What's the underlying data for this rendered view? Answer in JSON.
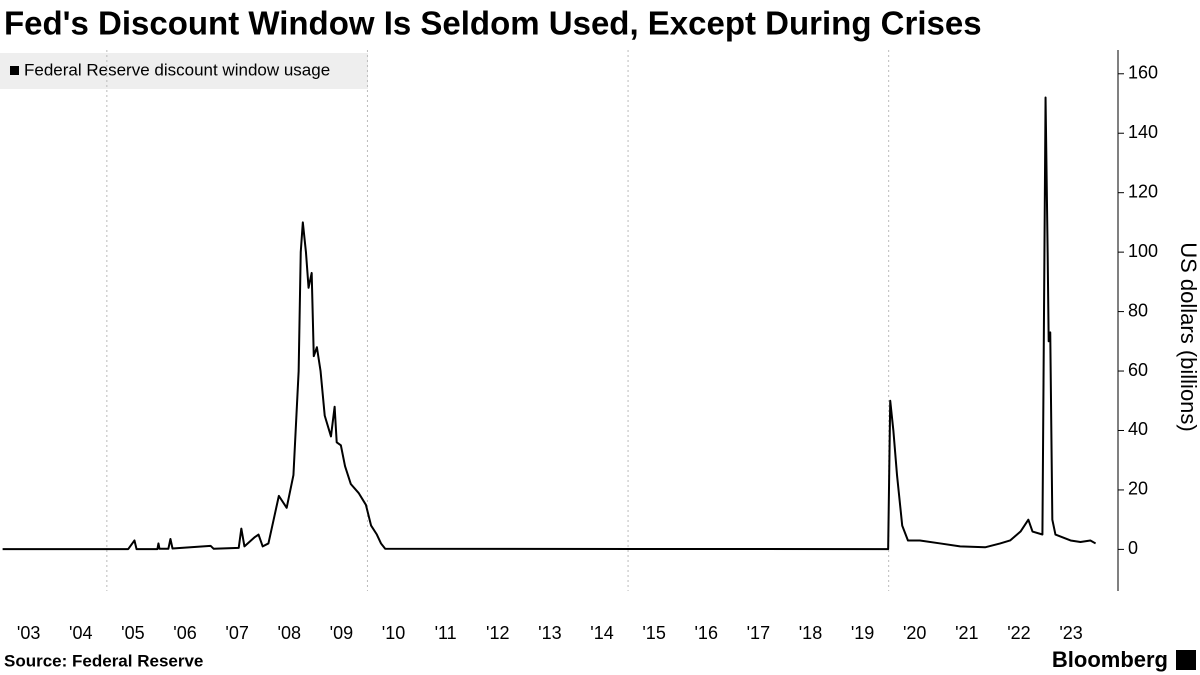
{
  "chart_data": {
    "type": "line",
    "title": "Fed's Discount Window Is Seldom Used, Except During Crises",
    "source": "Source: Federal Reserve",
    "brand": "Bloomberg",
    "y_label": "US dollars (billions)",
    "xlim": [
      2002.95,
      2024.4
    ],
    "ylim": [
      -14,
      168
    ],
    "yticks": [
      0,
      20,
      40,
      60,
      80,
      100,
      120,
      140,
      160
    ],
    "xticks": [
      {
        "value": 2003.5,
        "label": "'03"
      },
      {
        "value": 2004.5,
        "label": "'04"
      },
      {
        "value": 2005.5,
        "label": "'05"
      },
      {
        "value": 2006.5,
        "label": "'06"
      },
      {
        "value": 2007.5,
        "label": "'07"
      },
      {
        "value": 2008.5,
        "label": "'08"
      },
      {
        "value": 2009.5,
        "label": "'09"
      },
      {
        "value": 2010.5,
        "label": "'10"
      },
      {
        "value": 2011.5,
        "label": "'11"
      },
      {
        "value": 2012.5,
        "label": "'12"
      },
      {
        "value": 2013.5,
        "label": "'13"
      },
      {
        "value": 2014.5,
        "label": "'14"
      },
      {
        "value": 2015.5,
        "label": "'15"
      },
      {
        "value": 2016.5,
        "label": "'16"
      },
      {
        "value": 2017.5,
        "label": "'17"
      },
      {
        "value": 2018.5,
        "label": "'18"
      },
      {
        "value": 2019.5,
        "label": "'19"
      },
      {
        "value": 2020.5,
        "label": "'20"
      },
      {
        "value": 2021.5,
        "label": "'21"
      },
      {
        "value": 2022.5,
        "label": "'22"
      },
      {
        "value": 2023.5,
        "label": "'23"
      }
    ],
    "xgrid": [
      2005,
      2010,
      2015,
      2020
    ],
    "legend": "top-left",
    "series": [
      {
        "name": "Federal Reserve discount window usage",
        "color": "#000000",
        "x": [
          2003.0,
          2005.41,
          2005.53,
          2005.57,
          2005.97,
          2005.99,
          2006.01,
          2006.18,
          2006.22,
          2006.26,
          2006.85,
          2006.99,
          2007.05,
          2007.53,
          2007.58,
          2007.64,
          2007.83,
          2007.91,
          2007.99,
          2008.1,
          2008.2,
          2008.3,
          2008.45,
          2008.58,
          2008.68,
          2008.72,
          2008.76,
          2008.82,
          2008.87,
          2008.93,
          2008.97,
          2009.03,
          2009.1,
          2009.18,
          2009.3,
          2009.37,
          2009.41,
          2009.49,
          2009.57,
          2009.68,
          2009.83,
          2009.97,
          2010.07,
          2010.18,
          2010.26,
          2010.34,
          2019.99,
          2020.03,
          2020.09,
          2020.16,
          2020.26,
          2020.37,
          2020.6,
          2020.99,
          2021.37,
          2021.85,
          2022.14,
          2022.33,
          2022.53,
          2022.68,
          2022.76,
          2022.95,
          2023.01,
          2023.05,
          2023.07,
          2023.1,
          2023.14,
          2023.2,
          2023.49,
          2023.68,
          2023.87,
          2023.97
        ],
        "values": [
          0.1,
          0.1,
          3,
          0.1,
          0.1,
          2,
          0.2,
          0.2,
          3.5,
          0.3,
          1,
          1.2,
          0.2,
          0.5,
          7,
          1,
          4,
          5,
          1,
          2,
          10,
          18,
          14,
          25,
          60,
          100,
          110,
          100,
          88,
          93,
          65,
          68,
          60,
          45,
          38,
          48,
          36,
          35,
          28,
          22,
          19,
          15,
          8,
          5,
          2,
          0.2,
          0.1,
          50,
          40,
          25,
          8,
          3,
          3,
          2,
          1,
          0.7,
          2,
          3,
          6,
          10,
          6,
          5,
          152,
          100,
          70,
          73,
          10,
          5,
          3,
          2.5,
          3,
          2
        ]
      }
    ]
  }
}
